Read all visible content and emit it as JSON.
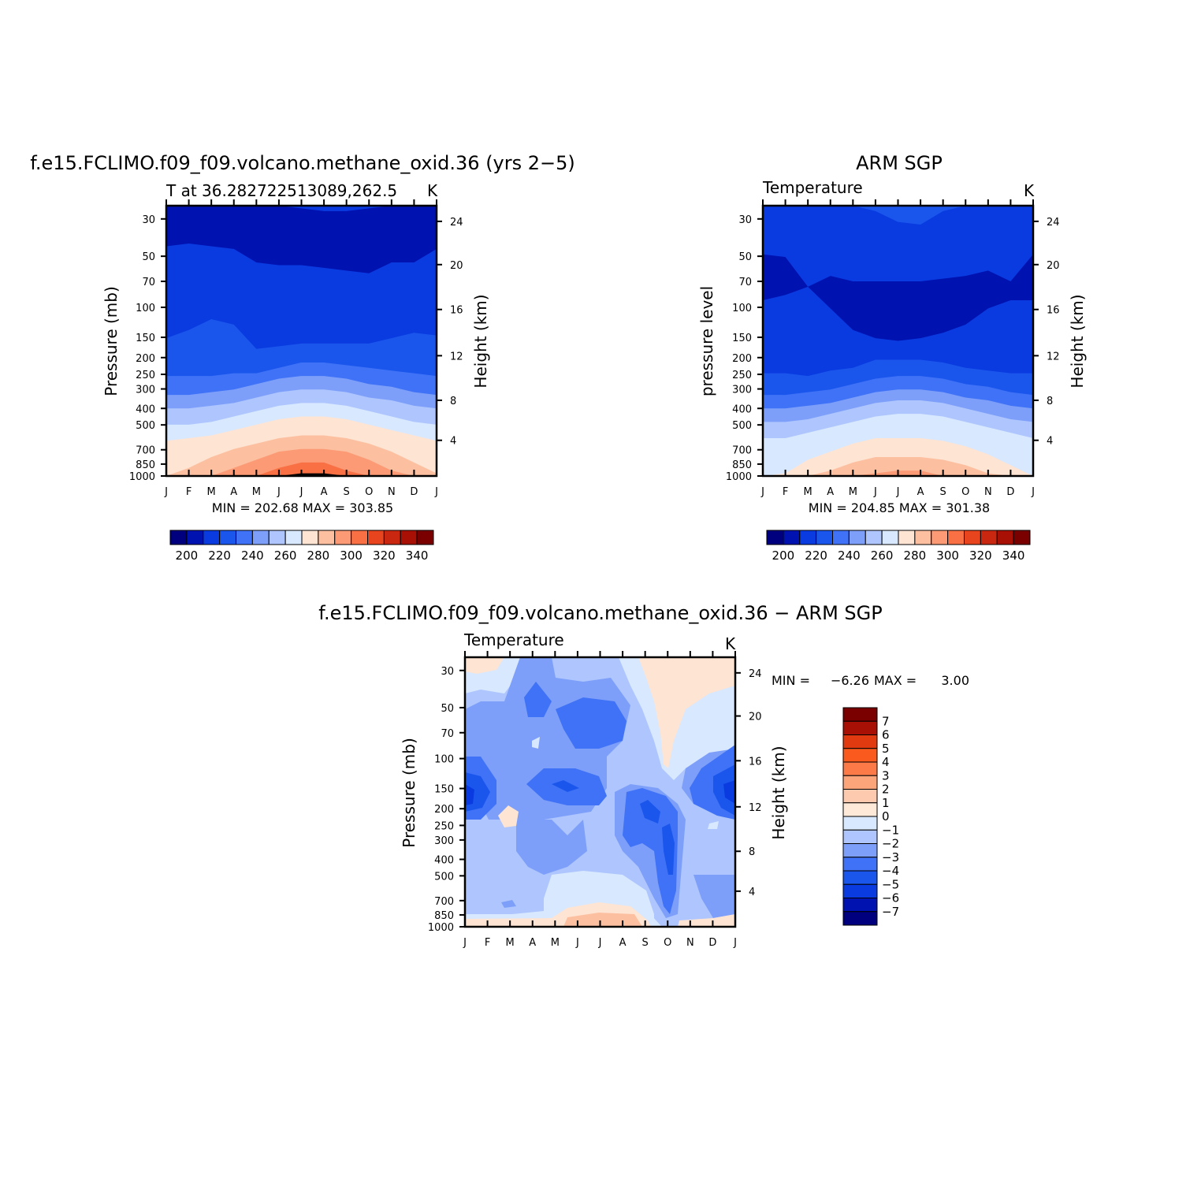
{
  "chart_data": [
    {
      "type": "heatmap",
      "title": "f.e15.FCLIMO.f09_f09.volcano.methane_oxid.36 (yrs 2−5)",
      "subtitle": "T at 36.282722513089,262.5",
      "units": "K",
      "ylabel": "Pressure (mb)",
      "ylabel_right": "Height (km)",
      "x_ticks": [
        "J",
        "F",
        "M",
        "A",
        "M",
        "J",
        "J",
        "A",
        "S",
        "O",
        "N",
        "D",
        "J"
      ],
      "y_ticks": [
        "30",
        "50",
        "70",
        "100",
        "150",
        "200",
        "250",
        "300",
        "400",
        "500",
        "700",
        "850",
        "1000"
      ],
      "y_ticks_right": [
        "24",
        "20",
        "16",
        "12",
        "8",
        "4"
      ],
      "min_max_text": "MIN = 202.68 MAX = 303.85",
      "colorbar_labels": [
        "200",
        "220",
        "240",
        "260",
        "280",
        "300",
        "320",
        "340"
      ],
      "band_boundaries": [
        [
          0.0,
          0.0,
          0.0,
          0.0,
          0.0,
          0.0,
          0.01,
          0.02,
          0.02,
          0.01,
          0.0,
          0.0,
          0.0
        ],
        [
          0.15,
          0.14,
          0.15,
          0.16,
          0.21,
          0.22,
          0.22,
          0.23,
          0.24,
          0.25,
          0.21,
          0.21,
          0.16
        ],
        [
          0.49,
          0.46,
          0.42,
          0.44,
          0.53,
          0.52,
          0.51,
          0.51,
          0.51,
          0.51,
          0.49,
          0.47,
          0.48
        ],
        [
          0.63,
          0.63,
          0.63,
          0.62,
          0.62,
          0.6,
          0.58,
          0.58,
          0.59,
          0.6,
          0.61,
          0.62,
          0.63
        ],
        [
          0.7,
          0.7,
          0.69,
          0.68,
          0.66,
          0.64,
          0.63,
          0.63,
          0.64,
          0.66,
          0.67,
          0.69,
          0.7
        ],
        [
          0.75,
          0.75,
          0.74,
          0.73,
          0.71,
          0.69,
          0.68,
          0.68,
          0.69,
          0.71,
          0.72,
          0.74,
          0.75
        ],
        [
          0.81,
          0.81,
          0.8,
          0.78,
          0.76,
          0.74,
          0.73,
          0.73,
          0.74,
          0.76,
          0.78,
          0.8,
          0.81
        ],
        [
          0.87,
          0.86,
          0.85,
          0.83,
          0.81,
          0.79,
          0.78,
          0.78,
          0.79,
          0.81,
          0.83,
          0.85,
          0.87
        ],
        [
          1.0,
          0.97,
          0.93,
          0.9,
          0.88,
          0.86,
          0.85,
          0.85,
          0.86,
          0.88,
          0.91,
          0.95,
          0.99
        ],
        [
          1.0,
          1.0,
          1.0,
          0.97,
          0.94,
          0.91,
          0.9,
          0.9,
          0.91,
          0.94,
          0.98,
          1.0,
          1.0
        ],
        [
          1.0,
          1.0,
          1.0,
          1.0,
          1.0,
          0.97,
          0.95,
          0.95,
          0.98,
          1.0,
          1.0,
          1.0,
          1.0
        ],
        [
          1.0,
          1.0,
          1.0,
          1.0,
          1.0,
          1.0,
          0.99,
          0.99,
          1.0,
          1.0,
          1.0,
          1.0,
          1.0
        ]
      ],
      "band_colors": [
        "#0a3be0",
        "#0012b0",
        "#0a3be0",
        "#1a56ec",
        "#3f72f6",
        "#7d9ff9",
        "#aec6fd",
        "#d8e8fe",
        "#fee4d3",
        "#fcc0a1",
        "#fb9a75",
        "#f97044"
      ]
    },
    {
      "type": "heatmap",
      "title": "ARM SGP",
      "subtitle": "Temperature",
      "units": "K",
      "ylabel": "pressure level",
      "ylabel_right": "Height (km)",
      "x_ticks": [
        "J",
        "F",
        "M",
        "A",
        "M",
        "J",
        "J",
        "A",
        "S",
        "O",
        "N",
        "D",
        "J"
      ],
      "y_ticks": [
        "30",
        "50",
        "70",
        "100",
        "150",
        "200",
        "250",
        "300",
        "400",
        "500",
        "700",
        "850",
        "1000"
      ],
      "y_ticks_right": [
        "24",
        "20",
        "16",
        "12",
        "8",
        "4"
      ],
      "min_max_text": "MIN = 204.85 MAX = 301.38",
      "colorbar_labels": [
        "200",
        "220",
        "240",
        "260",
        "280",
        "300",
        "320",
        "340"
      ],
      "band_boundaries": [
        [
          0.0,
          0.0,
          0.0,
          0.0,
          0.0,
          0.02,
          0.06,
          0.07,
          0.02,
          0.0,
          0.0,
          0.0,
          0.0
        ],
        [
          0.18,
          0.19,
          0.3,
          0.26,
          0.28,
          0.28,
          0.28,
          0.28,
          0.27,
          0.26,
          0.24,
          0.28,
          0.18
        ],
        [
          0.35,
          0.33,
          0.3,
          0.38,
          0.46,
          0.49,
          0.5,
          0.49,
          0.47,
          0.44,
          0.38,
          0.35,
          0.35
        ],
        [
          0.62,
          0.62,
          0.63,
          0.61,
          0.6,
          0.57,
          0.57,
          0.57,
          0.58,
          0.6,
          0.61,
          0.62,
          0.62
        ],
        [
          0.7,
          0.7,
          0.69,
          0.68,
          0.66,
          0.64,
          0.63,
          0.63,
          0.64,
          0.66,
          0.67,
          0.69,
          0.7
        ],
        [
          0.75,
          0.75,
          0.74,
          0.73,
          0.71,
          0.69,
          0.68,
          0.68,
          0.69,
          0.71,
          0.72,
          0.74,
          0.75
        ],
        [
          0.8,
          0.8,
          0.79,
          0.77,
          0.75,
          0.73,
          0.72,
          0.72,
          0.73,
          0.75,
          0.77,
          0.79,
          0.8
        ],
        [
          0.86,
          0.86,
          0.84,
          0.82,
          0.8,
          0.78,
          0.77,
          0.77,
          0.78,
          0.8,
          0.82,
          0.84,
          0.86
        ],
        [
          1.0,
          0.99,
          0.94,
          0.91,
          0.88,
          0.86,
          0.86,
          0.86,
          0.87,
          0.89,
          0.92,
          0.96,
          1.0
        ],
        [
          1.0,
          1.0,
          1.0,
          0.98,
          0.95,
          0.93,
          0.93,
          0.93,
          0.94,
          0.96,
          0.99,
          1.0,
          1.0
        ],
        [
          1.0,
          1.0,
          1.0,
          1.0,
          1.0,
          0.99,
          0.98,
          0.98,
          1.0,
          1.0,
          1.0,
          1.0,
          1.0
        ]
      ],
      "band_colors": [
        "#1a56ec",
        "#0a3be0",
        "#0012b0",
        "#0a3be0",
        "#1a56ec",
        "#3f72f6",
        "#7d9ff9",
        "#aec6fd",
        "#d8e8fe",
        "#fee4d3",
        "#fcc0a1",
        "#fb9a75"
      ]
    },
    {
      "type": "heatmap",
      "title": "f.e15.FCLIMO.f09_f09.volcano.methane_oxid.36 − ARM SGP",
      "subtitle": "Temperature",
      "units": "K",
      "ylabel": "Pressure (mb)",
      "ylabel_right": "Height (km)",
      "x_ticks": [
        "J",
        "F",
        "M",
        "A",
        "M",
        "J",
        "J",
        "A",
        "S",
        "O",
        "N",
        "D",
        "J"
      ],
      "y_ticks": [
        "30",
        "50",
        "70",
        "100",
        "150",
        "200",
        "250",
        "300",
        "400",
        "500",
        "700",
        "850",
        "1000"
      ],
      "y_ticks_right": [
        "24",
        "20",
        "16",
        "12",
        "8",
        "4"
      ],
      "min_label": "MIN =",
      "min_value": "−6.26",
      "max_label": "MAX =",
      "max_value": "3.00",
      "colorbar_labels": [
        "7",
        "6",
        "5",
        "4",
        "3",
        "2",
        "1",
        "0",
        "−1",
        "−2",
        "−3",
        "−4",
        "−5",
        "−6",
        "−7"
      ]
    }
  ],
  "colorbar_colors": [
    "#00007f",
    "#0012b0",
    "#0a3be0",
    "#1a56ec",
    "#3f72f6",
    "#7d9ff9",
    "#aec6fd",
    "#d8e8fe",
    "#fee4d3",
    "#fcc0a1",
    "#fb9a75",
    "#f97044",
    "#e8441d",
    "#c9270f",
    "#a80f05",
    "#7a0000"
  ],
  "diff_colorbar_colors": [
    "#7a0000",
    "#a80f05",
    "#e23a10",
    "#fa5a1e",
    "#fb7a48",
    "#fca47a",
    "#fdcab0",
    "#fee8d8",
    "#d8e8fe",
    "#aec6fd",
    "#7d9ff9",
    "#3f72f6",
    "#1a56ec",
    "#0a3be0",
    "#0012b0",
    "#00007f"
  ]
}
